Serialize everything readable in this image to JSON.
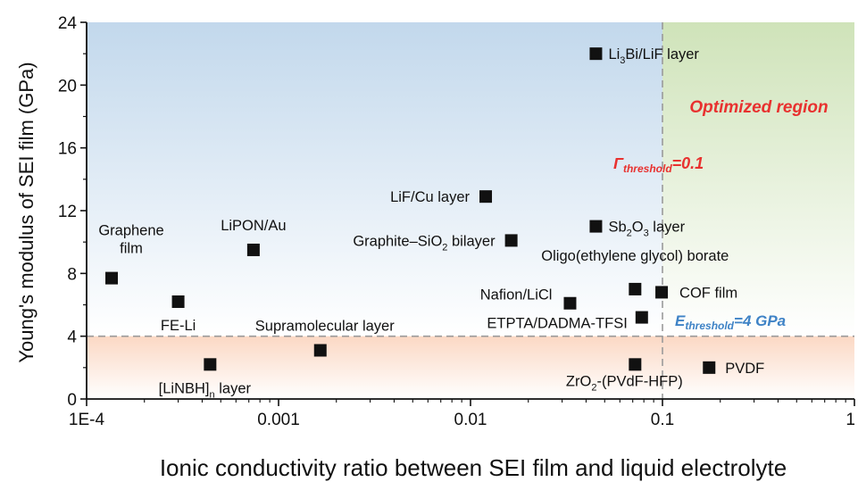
{
  "chart_data": {
    "type": "scatter",
    "title": "",
    "xlabel": "Ionic conductivity ratio between SEI film and liquid electrolyte",
    "ylabel": "Young's modulus of SEI film (GPa)",
    "xscale": "log",
    "xlim": [
      0.0001,
      1
    ],
    "ylim": [
      0,
      24
    ],
    "x_ticks": [
      {
        "value": 0.0001,
        "label": "1E-4"
      },
      {
        "value": 0.001,
        "label": "0.001"
      },
      {
        "value": 0.01,
        "label": "0.01"
      },
      {
        "value": 0.1,
        "label": "0.1"
      },
      {
        "value": 1,
        "label": "1"
      }
    ],
    "y_ticks": [
      0,
      4,
      8,
      12,
      16,
      20,
      24
    ],
    "grid": false,
    "marker": "square",
    "marker_color": "#111111",
    "regions": [
      {
        "name": "low-modulus",
        "y_range": [
          0,
          4
        ],
        "color": "#f7cdb4"
      },
      {
        "name": "high-modulus",
        "y_range": [
          4,
          24
        ],
        "color": "#c2d8ec"
      },
      {
        "name": "optimized",
        "x_range": [
          0.1,
          1
        ],
        "y_range": [
          4,
          24
        ],
        "color": "#cfe3b9"
      }
    ],
    "thresholds": [
      {
        "axis": "x",
        "value": 0.1
      },
      {
        "axis": "y",
        "value": 4
      }
    ],
    "annotations": {
      "optimized_region": "Optimized region",
      "gamma_symbol": "Γ",
      "gamma_sub": "threshold",
      "gamma_value": "=0.1",
      "e_symbol": "E",
      "e_sub": "threshold",
      "e_value": "=4 GPa",
      "red_color": "#e8312f",
      "blue_color": "#3f83c6"
    },
    "points": [
      {
        "x": 0.000135,
        "y": 7.7,
        "label": "Graphene\nfilm"
      },
      {
        "x": 0.0003,
        "y": 6.2,
        "label": "FE-Li"
      },
      {
        "x": 0.00044,
        "y": 2.2,
        "label": "[LiNBH]",
        "label_sub": "n",
        "label_post": " layer"
      },
      {
        "x": 0.00074,
        "y": 9.5,
        "label": "LiPON/Au"
      },
      {
        "x": 0.00165,
        "y": 3.1,
        "label": "Supramolecular layer"
      },
      {
        "x": 0.012,
        "y": 12.9,
        "label": "LiF/Cu layer"
      },
      {
        "x": 0.0163,
        "y": 10.1,
        "label": "Graphite–SiO",
        "label_sub": "2",
        "label_post": " bilayer"
      },
      {
        "x": 0.033,
        "y": 6.1,
        "label": "Nafion/LiCl"
      },
      {
        "x": 0.045,
        "y": 22.0,
        "label": "Li",
        "label_sub": "3",
        "label_post": "Bi/LiF layer"
      },
      {
        "x": 0.045,
        "y": 11.0,
        "label": "Sb",
        "label_sub": "2",
        "label_post": "O",
        "label_sub2": "3",
        "label_post2": " layer"
      },
      {
        "x": 0.072,
        "y": 7.0,
        "label": "Oligo(ethylene glycol) borate"
      },
      {
        "x": 0.078,
        "y": 5.2,
        "label": "ETPTA/DADMA-TFSI"
      },
      {
        "x": 0.072,
        "y": 2.2,
        "label": "ZrO",
        "label_sub": "2",
        "label_post": "-(PVdF-HFP)"
      },
      {
        "x": 0.099,
        "y": 6.8,
        "label": "COF film"
      },
      {
        "x": 0.175,
        "y": 2.0,
        "label": "PVDF"
      }
    ]
  }
}
